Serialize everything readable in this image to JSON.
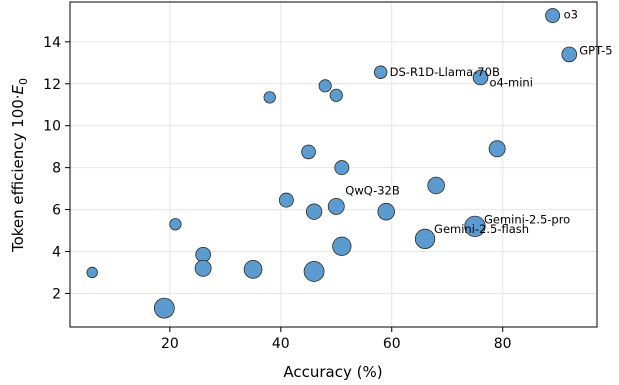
{
  "chart_data": {
    "type": "scatter",
    "title": "",
    "xlabel": "Accuracy (%)",
    "ylabel_prefix": "Token efficiency 100·",
    "ylabel_symbol": "E",
    "ylabel_subscript": "0",
    "xlim": [
      2,
      97
    ],
    "ylim": [
      0.4,
      15.9
    ],
    "xticks": [
      20,
      40,
      60,
      80
    ],
    "yticks": [
      2,
      4,
      6,
      8,
      10,
      12,
      14
    ],
    "grid": true,
    "marker_color": "#5b9bd0",
    "marker_edge_color": "#2b2b2b",
    "points": [
      {
        "x": 6,
        "y": 3.0,
        "size": 28
      },
      {
        "x": 19,
        "y": 1.3,
        "size": 100
      },
      {
        "x": 21,
        "y": 5.3,
        "size": 33
      },
      {
        "x": 26,
        "y": 3.85,
        "size": 55
      },
      {
        "x": 26,
        "y": 3.2,
        "size": 65
      },
      {
        "x": 35,
        "y": 3.15,
        "size": 80
      },
      {
        "x": 38,
        "y": 11.35,
        "size": 33
      },
      {
        "x": 41,
        "y": 6.45,
        "size": 50
      },
      {
        "x": 45,
        "y": 8.75,
        "size": 48
      },
      {
        "x": 46,
        "y": 5.9,
        "size": 60
      },
      {
        "x": 46,
        "y": 3.05,
        "size": 100
      },
      {
        "x": 48,
        "y": 11.9,
        "size": 38
      },
      {
        "x": 50,
        "y": 11.45,
        "size": 38
      },
      {
        "x": 50,
        "y": 6.15,
        "size": 65
      },
      {
        "x": 51,
        "y": 8.0,
        "size": 50
      },
      {
        "x": 51,
        "y": 4.25,
        "size": 85
      },
      {
        "x": 58,
        "y": 12.55,
        "size": 40
      },
      {
        "x": 59,
        "y": 5.9,
        "size": 70
      },
      {
        "x": 66,
        "y": 4.6,
        "size": 95
      },
      {
        "x": 68,
        "y": 7.15,
        "size": 70
      },
      {
        "x": 75,
        "y": 5.2,
        "size": 105
      },
      {
        "x": 76,
        "y": 12.3,
        "size": 55
      },
      {
        "x": 79,
        "y": 8.9,
        "size": 65
      },
      {
        "x": 89,
        "y": 15.25,
        "size": 50
      },
      {
        "x": 92,
        "y": 13.4,
        "size": 55
      }
    ],
    "annotations": [
      {
        "text": "o3",
        "x": 89,
        "y": 15.25,
        "anchor": "start"
      },
      {
        "text": "GPT-5",
        "x": 92,
        "y": 13.4,
        "anchor": "start"
      },
      {
        "text": "DS-R1D-Llama-70B",
        "x": 58,
        "y": 12.55,
        "anchor": "start"
      },
      {
        "text": "o4-mini",
        "x": 76,
        "y": 12.3,
        "anchor": "start"
      },
      {
        "text": "QwQ-32B",
        "x": 50,
        "y": 6.15,
        "anchor": "start"
      },
      {
        "text": "Gemini-2.5-pro",
        "x": 75,
        "y": 5.2,
        "anchor": "start"
      },
      {
        "text": "Gemini-2.5-flash",
        "x": 66,
        "y": 4.6,
        "anchor": "start"
      }
    ]
  }
}
